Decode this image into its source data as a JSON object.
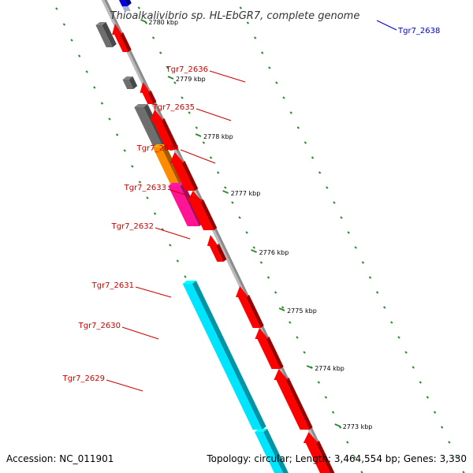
{
  "title": "Thioalkalivibrio sp. HL-EbGR7, complete genome",
  "accession": "Accession: NC_011901",
  "topology": "Topology: circular; Length: 3,464,554 bp; Genes: 3,330",
  "ruler_labels": [
    "2780 kbp",
    "2779 kbp",
    "2778 kbp",
    "2777 kbp",
    "2776 kbp",
    "2775 kbp",
    "2774 kbp",
    "2773 kbp"
  ],
  "gene_labels": [
    {
      "name": "Tgr7_2638",
      "color": "#0000cc"
    },
    {
      "name": "Tgr7_2636",
      "color": "#cc0000"
    },
    {
      "name": "Tgr7_2635",
      "color": "#cc0000"
    },
    {
      "name": "Tgr7_2634",
      "color": "#cc0000"
    },
    {
      "name": "Tgr7_2633",
      "color": "#cc0000"
    },
    {
      "name": "Tgr7_2632",
      "color": "#cc0000"
    },
    {
      "name": "Tgr7_2631",
      "color": "#cc0000"
    },
    {
      "name": "Tgr7_2630",
      "color": "#cc0000"
    },
    {
      "name": "Tgr7_2629",
      "color": "#cc0000"
    }
  ],
  "colors": {
    "forward_cds": "#ff0000",
    "reverse_gray": "#6e6e6e",
    "reverse_orange": "#ff8c00",
    "reverse_magenta": "#ff1493",
    "reverse_cyan": "#00e5ff",
    "backbone": "#8c8c8c",
    "ruler_tick": "#2e8b2e",
    "blue_feature": "#0000dd"
  }
}
